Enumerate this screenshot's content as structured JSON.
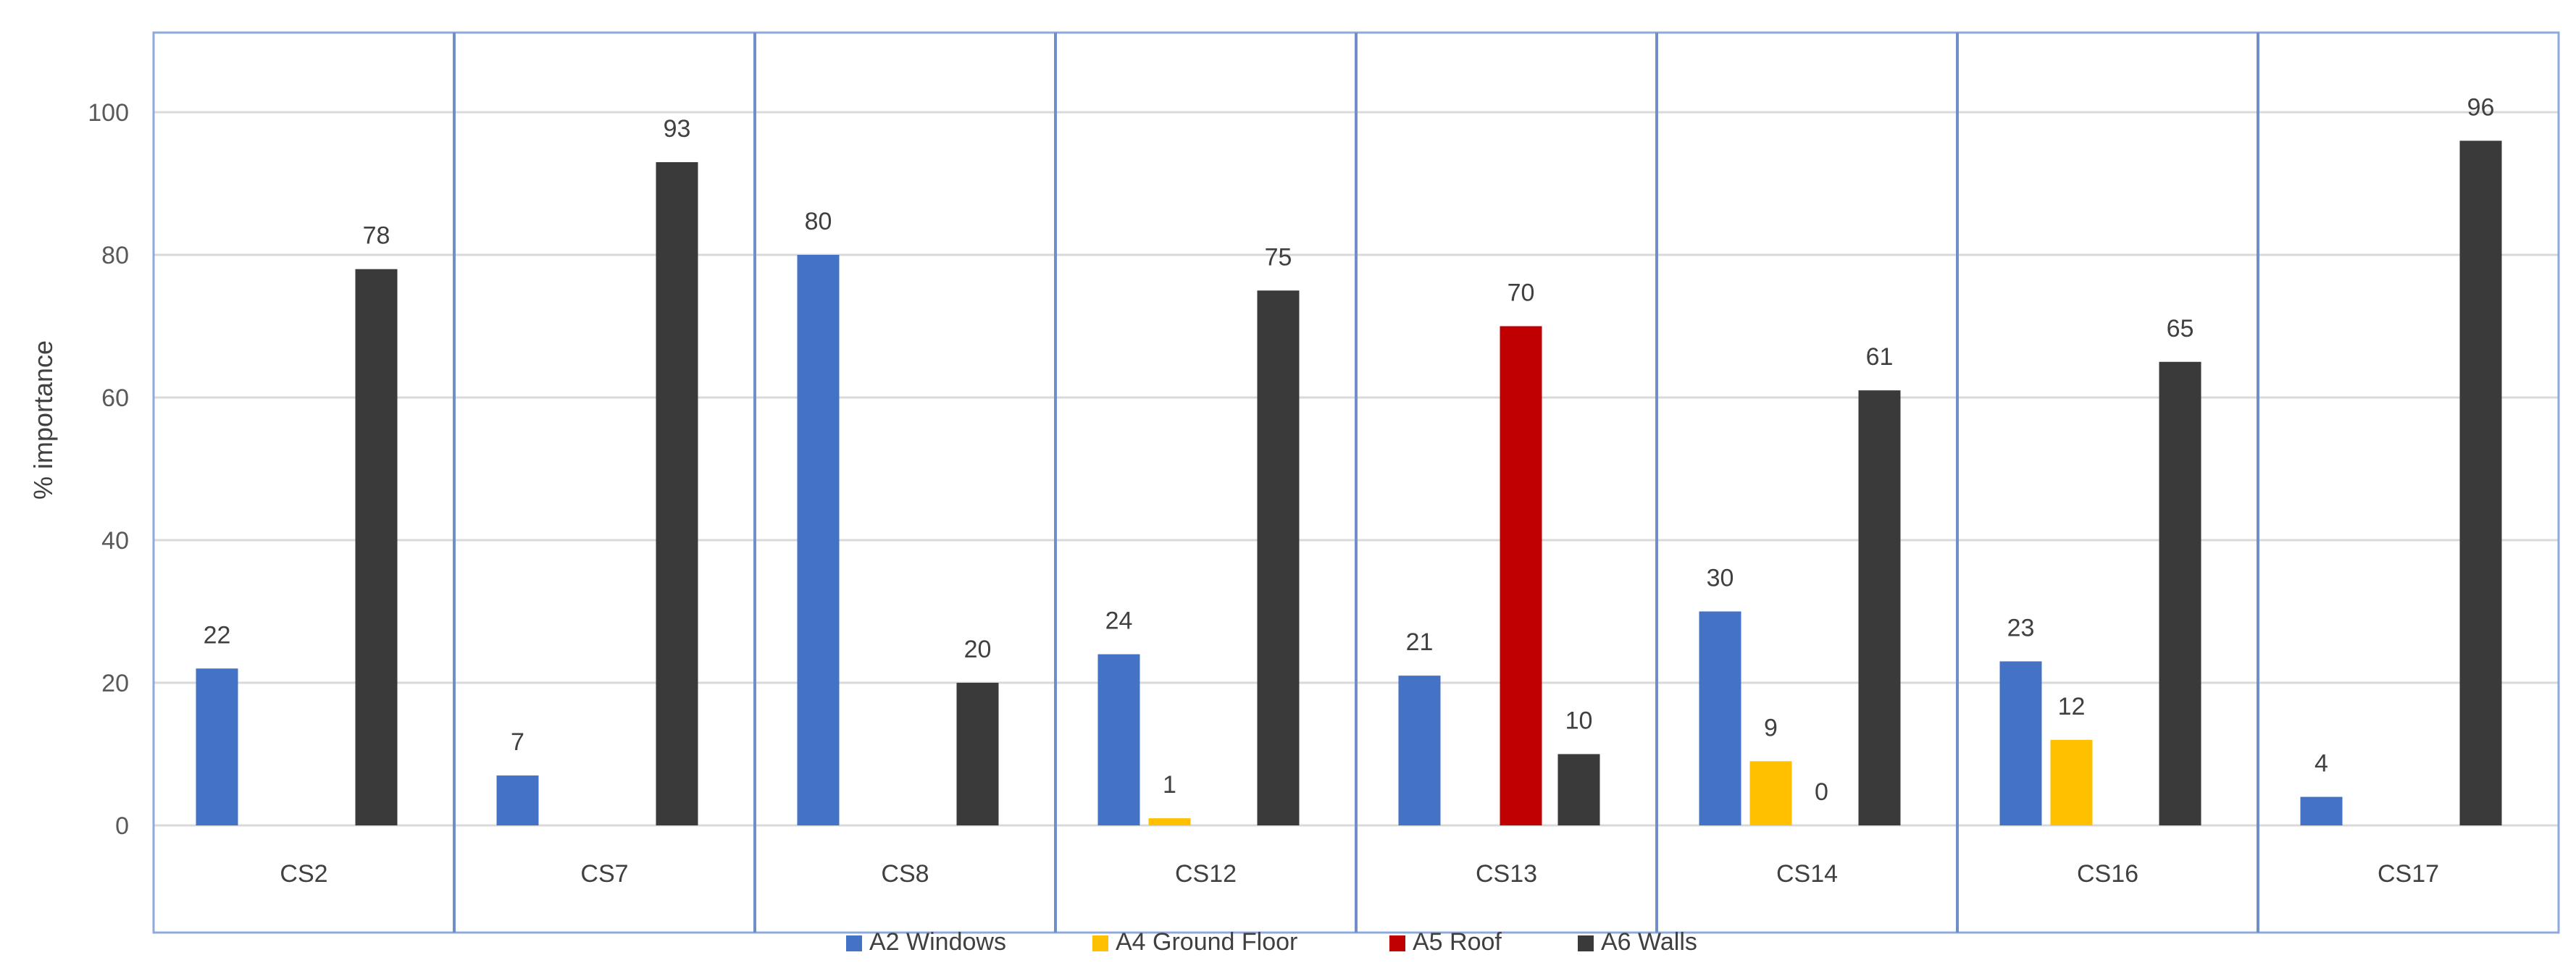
{
  "chart_data": {
    "type": "bar",
    "ylabel": "% importance",
    "xlabel": "",
    "title": "",
    "ylim": [
      -15,
      110
    ],
    "yticks": [
      0,
      20,
      40,
      60,
      80,
      100
    ],
    "grid": true,
    "legend_position": "bottom",
    "categories": [
      "CS2",
      "CS7",
      "CS8",
      "CS12",
      "CS13",
      "CS14",
      "CS16",
      "CS17"
    ],
    "series": [
      {
        "name": "A2 Windows",
        "color": "#4472C4",
        "values": [
          22,
          7,
          80,
          24,
          21,
          30,
          23,
          4
        ]
      },
      {
        "name": "A4 Ground Floor",
        "color": "#FFC000",
        "values": [
          null,
          null,
          null,
          1,
          null,
          9,
          12,
          null
        ]
      },
      {
        "name": "A5 Roof",
        "color": "#C00000",
        "values": [
          null,
          null,
          null,
          null,
          70,
          0,
          null,
          null
        ]
      },
      {
        "name": "A6 Walls",
        "color": "#3A3A3A",
        "values": [
          78,
          93,
          20,
          75,
          10,
          61,
          65,
          96
        ]
      }
    ]
  }
}
